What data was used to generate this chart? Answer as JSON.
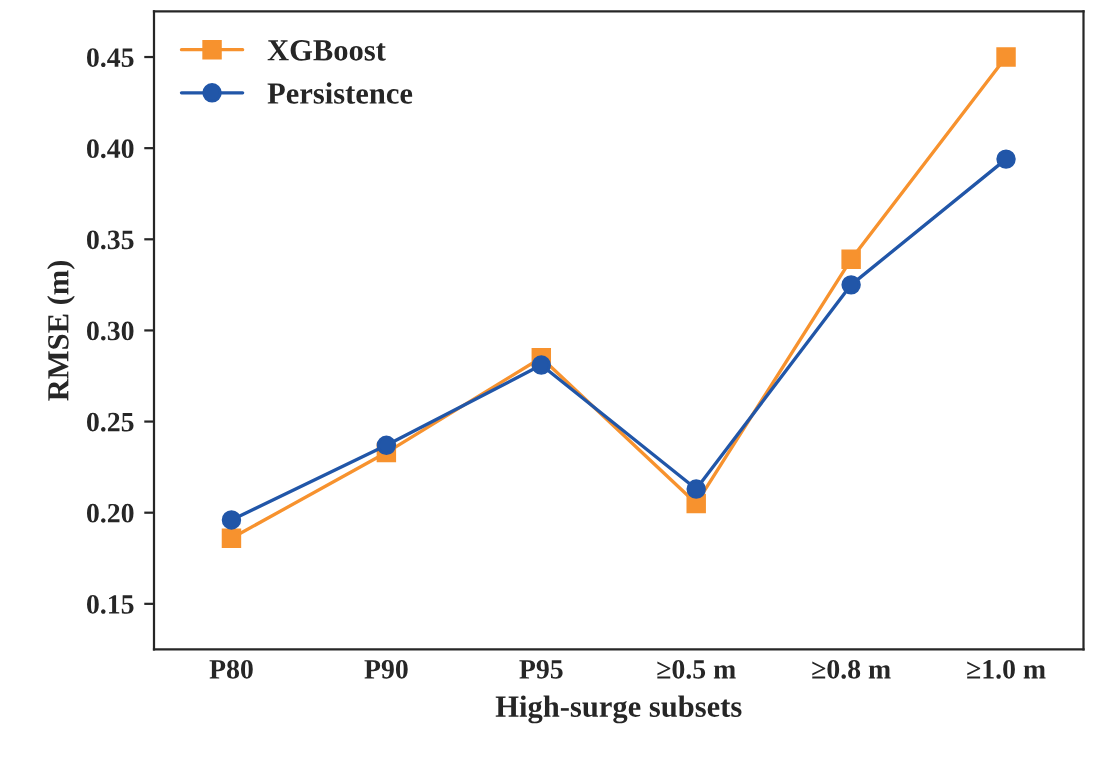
{
  "chart_data": {
    "type": "line",
    "xlabel": "High-surge subsets",
    "ylabel": "RMSE (m)",
    "categories": [
      "P80",
      "P90",
      "P95",
      "≥0.5 m",
      "≥0.8 m",
      "≥1.0 m"
    ],
    "series": [
      {
        "name": "XGBoost",
        "color": "#f7922e",
        "marker": "square",
        "values": [
          0.186,
          0.233,
          0.285,
          0.205,
          0.339,
          0.45
        ]
      },
      {
        "name": "Persistence",
        "color": "#2156a8",
        "marker": "circle",
        "values": [
          0.196,
          0.237,
          0.281,
          0.213,
          0.325,
          0.394
        ]
      }
    ],
    "ylim": [
      0.125,
      0.475
    ],
    "yticks": [
      0.15,
      {
        "value": 0.2,
        "label": "0.20"
      },
      0.25,
      {
        "value": 0.3,
        "label": "0.30"
      },
      0.35,
      {
        "value": 0.4,
        "label": "0.40"
      },
      0.45
    ],
    "legend": "top left",
    "grid": false,
    "line_style": "solid"
  }
}
